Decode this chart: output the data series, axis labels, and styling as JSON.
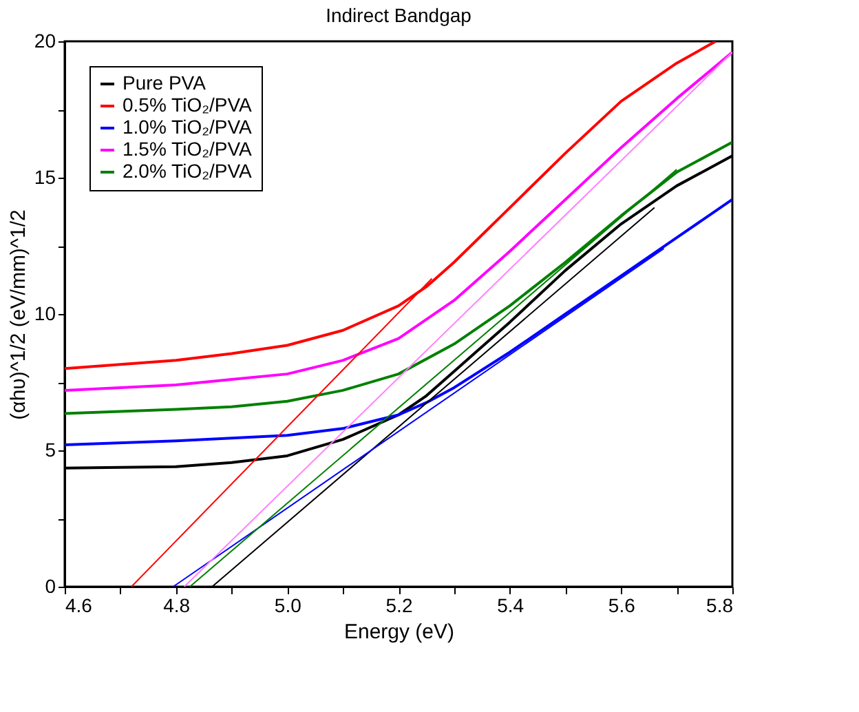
{
  "chart_data": {
    "type": "line",
    "title": "Indirect Bandgap",
    "xlabel": "Energy (eV)",
    "ylabel": "(αhυ)^1/2 (eV/mm)^1/2",
    "xlim": [
      4.6,
      5.8
    ],
    "ylim": [
      0,
      20
    ],
    "xticks": [
      4.6,
      {
        "value": 4.7,
        "label": null
      },
      4.8,
      {
        "value": 4.9,
        "label": null
      },
      {
        "value": 5.0,
        "label": "5.0"
      },
      {
        "value": 5.1,
        "label": null
      },
      5.2,
      {
        "value": 5.3,
        "label": null
      },
      5.4,
      {
        "value": 5.5,
        "label": null
      },
      5.6,
      {
        "value": 5.7,
        "label": null
      },
      5.8
    ],
    "yticks": [
      0,
      {
        "value": 2.5,
        "label": null
      },
      5,
      {
        "value": 7.5,
        "label": null
      },
      10,
      {
        "value": 12.5,
        "label": null
      },
      15,
      {
        "value": 17.5,
        "label": null
      },
      20
    ],
    "grid": false,
    "legend": "top left",
    "marker": "none",
    "line_style": "solid",
    "series": [
      {
        "name": "Pure PVA",
        "color": "#000000",
        "x": [
          4.6,
          4.8,
          4.9,
          5.0,
          5.1,
          5.2,
          5.25,
          5.3,
          5.4,
          5.5,
          5.6,
          5.7,
          5.8
        ],
        "values": [
          4.35,
          4.4,
          4.55,
          4.8,
          5.4,
          6.3,
          7.0,
          7.9,
          9.7,
          11.6,
          13.3,
          14.7,
          15.8
        ]
      },
      {
        "name": "0.5% TiO₂/PVA",
        "color": "#ff0000",
        "x": [
          4.6,
          4.8,
          4.9,
          5.0,
          5.1,
          5.2,
          5.25,
          5.3,
          5.4,
          5.5,
          5.6,
          5.7,
          5.77
        ],
        "values": [
          8.0,
          8.3,
          8.55,
          8.85,
          9.4,
          10.3,
          11.0,
          11.9,
          13.9,
          15.9,
          17.8,
          19.2,
          20.0
        ]
      },
      {
        "name": "1.0% TiO₂/PVA",
        "color": "#0000ff",
        "x": [
          4.6,
          4.8,
          4.9,
          5.0,
          5.1,
          5.2,
          5.25,
          5.3,
          5.4,
          5.5,
          5.6,
          5.7,
          5.8
        ],
        "values": [
          5.2,
          5.35,
          5.45,
          5.55,
          5.8,
          6.3,
          6.75,
          7.3,
          8.6,
          10.0,
          11.4,
          12.8,
          14.2
        ]
      },
      {
        "name": "1.5% TiO₂/PVA",
        "color": "#ff00ff",
        "x": [
          4.6,
          4.8,
          4.9,
          5.0,
          5.1,
          5.2,
          5.3,
          5.4,
          5.5,
          5.6,
          5.7,
          5.8
        ],
        "values": [
          7.2,
          7.4,
          7.6,
          7.8,
          8.3,
          9.1,
          10.5,
          12.3,
          14.2,
          16.1,
          17.9,
          19.6
        ]
      },
      {
        "name": "2.0% TiO₂/PVA",
        "color": "#008000",
        "x": [
          4.6,
          4.8,
          4.9,
          5.0,
          5.1,
          5.2,
          5.3,
          5.4,
          5.5,
          5.6,
          5.7,
          5.8
        ],
        "values": [
          6.35,
          6.5,
          6.6,
          6.8,
          7.2,
          7.8,
          8.9,
          10.3,
          11.9,
          13.6,
          15.2,
          16.3
        ]
      },
      {
        "color": "#000000",
        "x": [
          4.865,
          5.66
        ],
        "values": [
          0,
          13.9
        ]
      },
      {
        "color": "#ff0000",
        "x": [
          4.72,
          5.26
        ],
        "values": [
          0,
          11.3
        ]
      },
      {
        "color": "#0000ff",
        "x": [
          4.795,
          5.677
        ],
        "values": [
          0,
          12.4
        ]
      },
      {
        "color": "#ff80ff",
        "x": [
          4.815,
          5.8
        ],
        "values": [
          0,
          19.6
        ]
      },
      {
        "color": "#008000",
        "x": [
          4.825,
          5.7
        ],
        "values": [
          0,
          15.3
        ]
      }
    ]
  }
}
